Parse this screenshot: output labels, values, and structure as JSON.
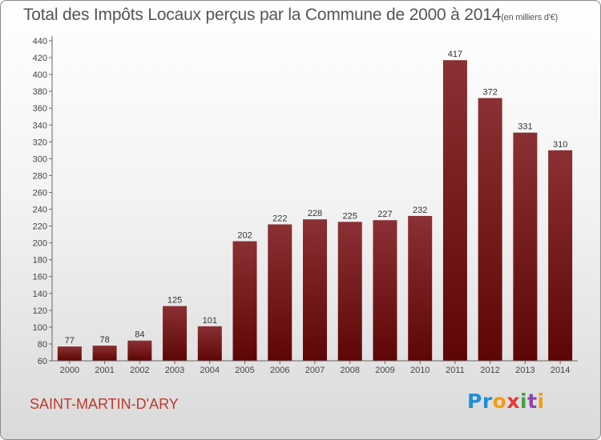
{
  "title": {
    "main": "Total des Impôts Locaux perçus par la Commune de 2000 à 2014",
    "unit": "(en milliers d'€)"
  },
  "commune": "SAINT-MARTIN-D'ARY",
  "logo": {
    "text": "Proxiti",
    "letters": [
      "P",
      "r",
      "o",
      "x",
      "i",
      "t",
      "i"
    ]
  },
  "colors": {
    "bar_top": "#8b3034",
    "bar_bottom": "#5e0606",
    "axis": "#555555",
    "commune": "#c0392b"
  },
  "chart_data": {
    "type": "bar",
    "categories": [
      "2000",
      "2001",
      "2002",
      "2003",
      "2004",
      "2005",
      "2006",
      "2007",
      "2008",
      "2009",
      "2010",
      "2011",
      "2012",
      "2013",
      "2014"
    ],
    "values": [
      77,
      78,
      84,
      125,
      101,
      202,
      222,
      228,
      225,
      227,
      232,
      417,
      372,
      331,
      310
    ],
    "data_labels": [
      "77",
      "78",
      "84",
      "125",
      "101",
      "202",
      "222",
      "228",
      "225",
      "227",
      "232",
      "417",
      "372",
      "331",
      "310"
    ],
    "y_ticks": [
      60,
      80,
      100,
      120,
      140,
      160,
      180,
      200,
      220,
      240,
      260,
      280,
      300,
      320,
      340,
      360,
      380,
      400,
      420,
      440
    ],
    "ylim": [
      60,
      440
    ],
    "title": "Total des Impôts Locaux perçus par la Commune de 2000 à 2014",
    "xlabel": "",
    "ylabel": "",
    "grid": false
  }
}
